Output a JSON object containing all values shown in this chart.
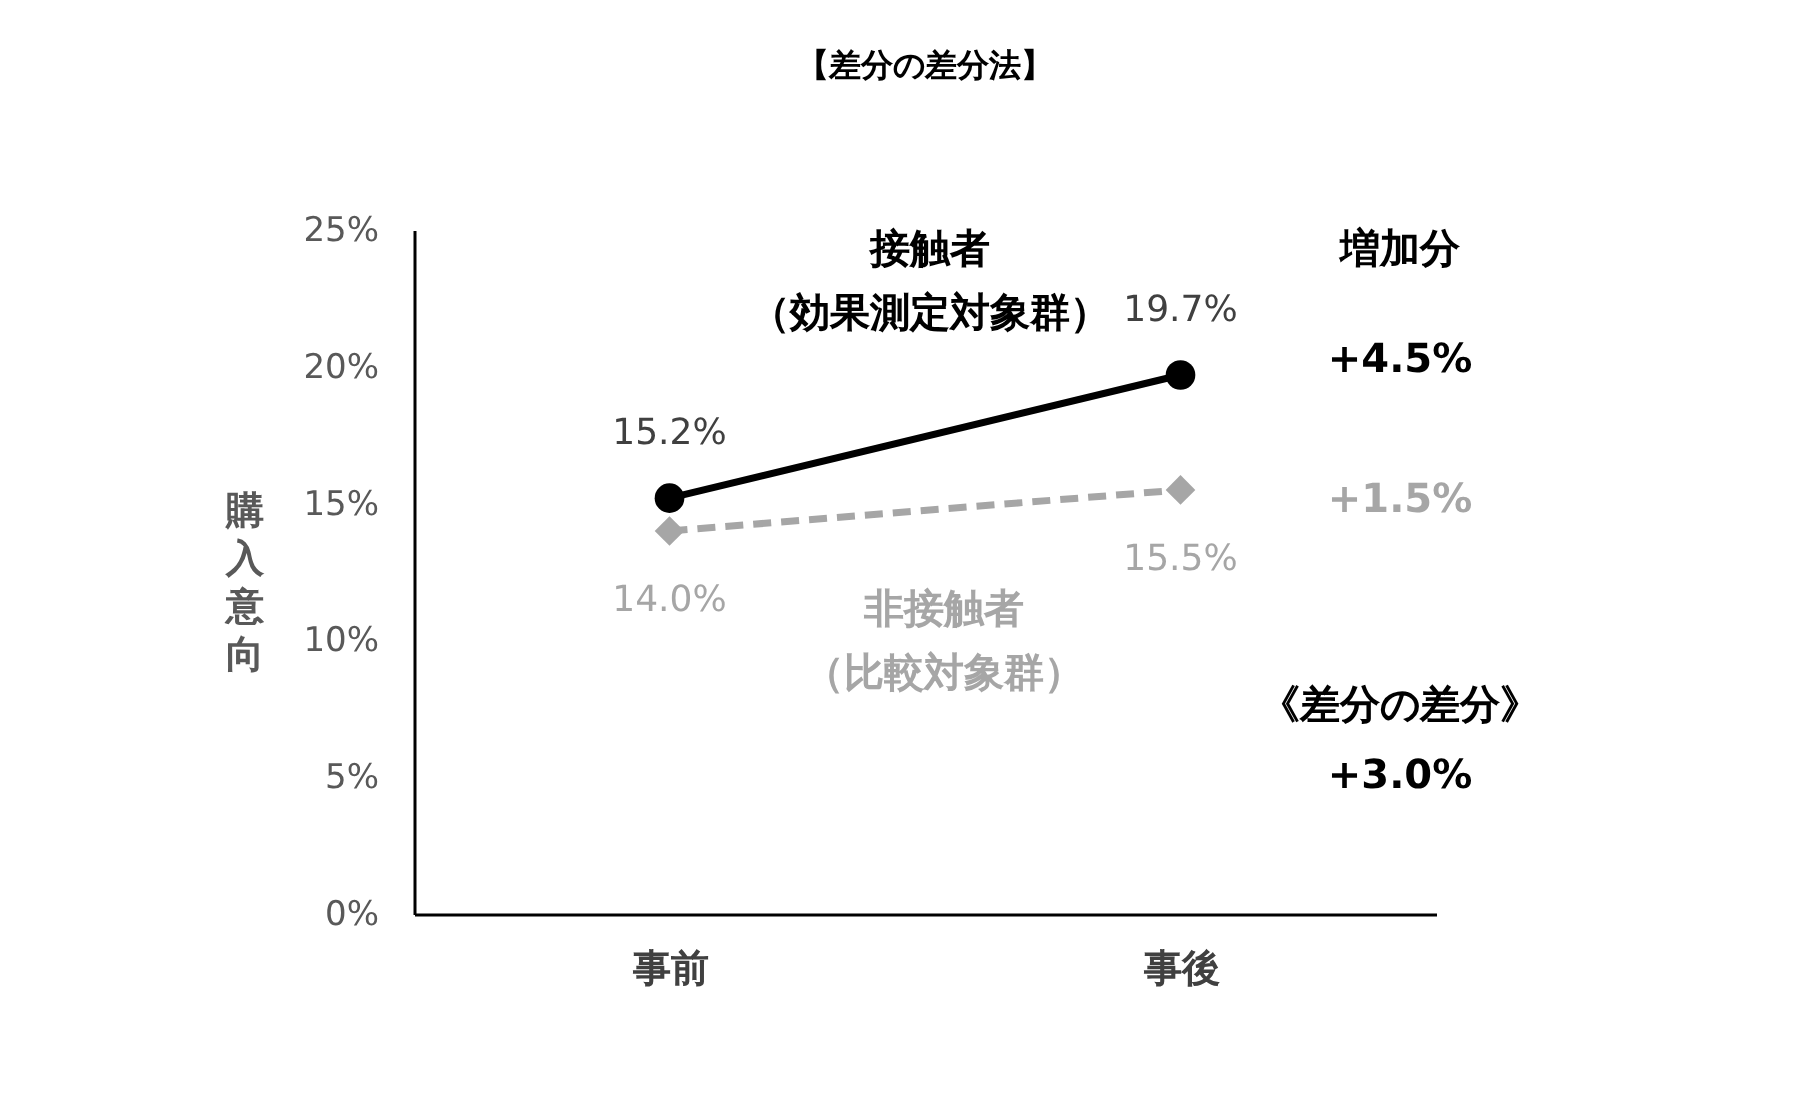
{
  "chart_data": {
    "type": "line",
    "title": "【差分の差分法】",
    "ylabel": "購入意向",
    "categories": [
      "事前",
      "事後"
    ],
    "series": [
      {
        "name": "接触者（効果測定対象群）",
        "color": "#000000",
        "values": [
          15.2,
          19.7
        ],
        "value_labels": [
          "15.2%",
          "19.7%"
        ],
        "marker": "circle",
        "line_style": "solid"
      },
      {
        "name": "非接触者（比較対象群）",
        "color": "#a6a6a6",
        "values": [
          14.0,
          15.5
        ],
        "value_labels": [
          "14.0%",
          "15.5%"
        ],
        "marker": "diamond",
        "line_style": "dashed"
      }
    ],
    "ylim": [
      0,
      25
    ],
    "yticks": [
      {
        "value": 0,
        "label": "0%"
      },
      {
        "value": 5,
        "label": "5%"
      },
      {
        "value": 10,
        "label": "10%"
      },
      {
        "value": 15,
        "label": "15%"
      },
      {
        "value": 20,
        "label": "20%"
      },
      {
        "value": 25,
        "label": "25%"
      }
    ],
    "annotations": [
      "増加分",
      "+4.5%",
      "+1.5%",
      "《差分の差分》",
      "+3.0%"
    ],
    "grid": false
  }
}
